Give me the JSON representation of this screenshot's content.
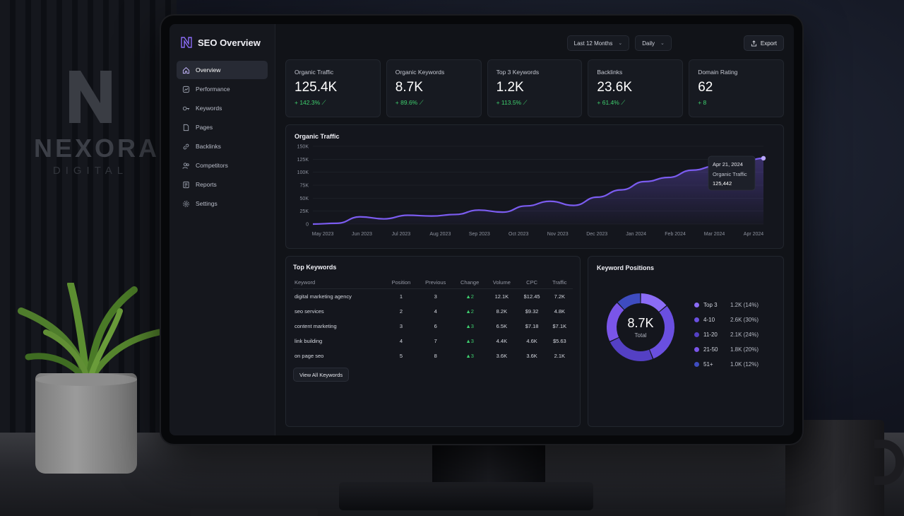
{
  "brand": {
    "name": "NEXORA",
    "tagline": "DIGITAL"
  },
  "app": {
    "title": "SEO Overview"
  },
  "sidebar": {
    "items": [
      {
        "label": "Overview",
        "icon": "home-icon",
        "active": true
      },
      {
        "label": "Performance",
        "icon": "chart-icon"
      },
      {
        "label": "Keywords",
        "icon": "key-icon"
      },
      {
        "label": "Pages",
        "icon": "page-icon"
      },
      {
        "label": "Backlinks",
        "icon": "link-icon"
      },
      {
        "label": "Competitors",
        "icon": "users-icon"
      },
      {
        "label": "Reports",
        "icon": "report-icon"
      },
      {
        "label": "Settings",
        "icon": "gear-icon"
      }
    ]
  },
  "toolbar": {
    "date_range": "Last 12 Months",
    "granularity": "Daily",
    "export_label": "Export"
  },
  "kpis": [
    {
      "label": "Organic Traffic",
      "value": "125.4K",
      "change": "+ 142.3%"
    },
    {
      "label": "Organic Keywords",
      "value": "8.7K",
      "change": "+ 89.6%"
    },
    {
      "label": "Top 3 Keywords",
      "value": "1.2K",
      "change": "+ 113.5%"
    },
    {
      "label": "Backlinks",
      "value": "23.6K",
      "change": "+ 61.4%"
    },
    {
      "label": "Domain Rating",
      "value": "62",
      "change": "+ 8"
    }
  ],
  "traffic_chart": {
    "title": "Organic Traffic",
    "tooltip": {
      "date": "Apr 21, 2024",
      "label": "Organic Traffic",
      "value": "125,442"
    }
  },
  "chart_data": {
    "type": "area",
    "title": "Organic Traffic",
    "x_labels": [
      "May 2023",
      "Jun 2023",
      "Jul 2023",
      "Aug 2023",
      "Sep 2023",
      "Oct 2023",
      "Nov 2023",
      "Dec 2023",
      "Jan 2024",
      "Feb 2024",
      "Mar 2024",
      "Apr 2024"
    ],
    "y_ticks": [
      "0",
      "25K",
      "50K",
      "75K",
      "100K",
      "125K",
      "150K"
    ],
    "ylim": [
      0,
      150000
    ],
    "series": [
      {
        "values": [
          0,
          1500,
          14000,
          10000,
          17000,
          15500,
          18500,
          27000,
          23000,
          35000,
          44000,
          36000,
          52000,
          66000,
          82000,
          90000,
          104000,
          112000,
          118000,
          127000
        ]
      }
    ],
    "grid": true,
    "accent": "#7b5cf0"
  },
  "top_keywords": {
    "title": "Top Keywords",
    "columns": [
      "Keyword",
      "Position",
      "Previous",
      "Change",
      "Volume",
      "CPC",
      "Traffic"
    ],
    "rows": [
      [
        "digital marketing agency",
        "1",
        "3",
        "▲2",
        "12.1K",
        "$12.45",
        "7.2K"
      ],
      [
        "seo services",
        "2",
        "4",
        "▲2",
        "8.2K",
        "$9.32",
        "4.8K"
      ],
      [
        "content marketing",
        "3",
        "6",
        "▲3",
        "6.5K",
        "$7.18",
        "$7.1K"
      ],
      [
        "link building",
        "4",
        "7",
        "▲3",
        "4.4K",
        "4.6K",
        "$5.63"
      ],
      [
        "on page seo",
        "5",
        "8",
        "▲3",
        "3.6K",
        "3.6K",
        "2.1K"
      ]
    ],
    "view_all_label": "View All Keywords"
  },
  "keyword_positions": {
    "title": "Keyword Positions",
    "total": "8.7K",
    "total_label": "Total",
    "segments": [
      {
        "name": "Top 3",
        "value": "1.2K (14%)",
        "pct": 14,
        "color": "#8b6cf6"
      },
      {
        "name": "4-10",
        "value": "2.6K (30%)",
        "pct": 30,
        "color": "#6a4fe0"
      },
      {
        "name": "11-20",
        "value": "2.1K (24%)",
        "pct": 24,
        "color": "#5440c4"
      },
      {
        "name": "21-50",
        "value": "1.8K (20%)",
        "pct": 20,
        "color": "#7a55e8"
      },
      {
        "name": "51+",
        "value": "1.0K (12%)",
        "pct": 12,
        "color": "#3e4cc0"
      }
    ]
  }
}
